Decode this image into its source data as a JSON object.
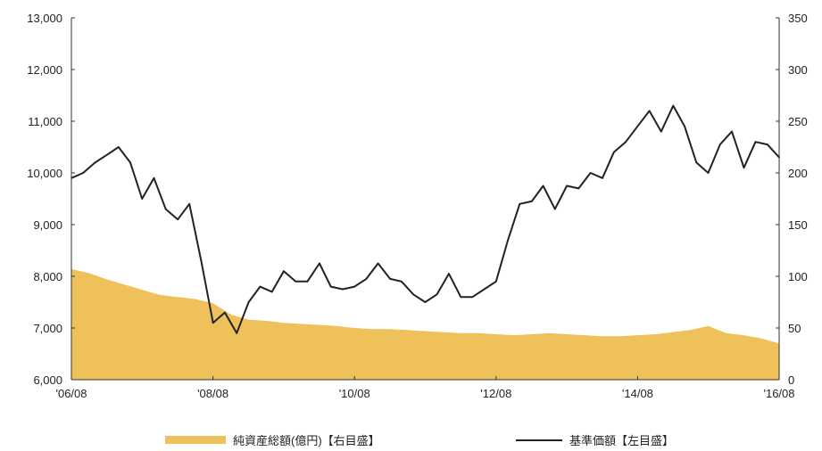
{
  "chart_data": {
    "type": "line",
    "x_ticks": [
      "'06/08",
      "'08/08",
      "'10/08",
      "'12/08",
      "'14/08",
      "'16/08"
    ],
    "left_axis": {
      "ticks": [
        "6,000",
        "7,000",
        "8,000",
        "9,000",
        "10,000",
        "11,000",
        "12,000",
        "13,000"
      ],
      "ylim": [
        6000,
        13000
      ]
    },
    "right_axis": {
      "ticks": [
        "0",
        "50",
        "100",
        "150",
        "200",
        "250",
        "300",
        "350"
      ],
      "ylim": [
        0,
        350
      ]
    },
    "grid": false,
    "legend_position": "bottom",
    "series": [
      {
        "name": "純資産総額(億円)【右目盛】",
        "type": "area",
        "axis": "right",
        "color": "#eec15a",
        "x": [
          "2006-08",
          "2006-11",
          "2007-02",
          "2007-05",
          "2007-08",
          "2007-11",
          "2008-02",
          "2008-05",
          "2008-08",
          "2008-11",
          "2009-02",
          "2009-05",
          "2009-08",
          "2009-11",
          "2010-02",
          "2010-05",
          "2010-08",
          "2010-11",
          "2011-02",
          "2011-05",
          "2011-08",
          "2011-11",
          "2012-02",
          "2012-05",
          "2012-08",
          "2012-11",
          "2013-02",
          "2013-05",
          "2013-08",
          "2013-11",
          "2014-02",
          "2014-05",
          "2014-08",
          "2014-11",
          "2015-02",
          "2015-05",
          "2015-08",
          "2015-11",
          "2016-02",
          "2016-05",
          "2016-08"
        ],
        "values": [
          107,
          103,
          97,
          92,
          87,
          82,
          80,
          78,
          74,
          63,
          58,
          57,
          55,
          54,
          53,
          52,
          50,
          49,
          49,
          48,
          47,
          46,
          45,
          45,
          44,
          43,
          44,
          45,
          44,
          43,
          42,
          42,
          43,
          44,
          46,
          48,
          52,
          45,
          43,
          40,
          35
        ]
      },
      {
        "name": "基準価額【左目盛】",
        "type": "line",
        "axis": "left",
        "color": "#222222",
        "x": [
          "2006-08",
          "2006-10",
          "2006-12",
          "2007-02",
          "2007-04",
          "2007-06",
          "2007-08",
          "2007-10",
          "2007-12",
          "2008-02",
          "2008-04",
          "2008-06",
          "2008-08",
          "2008-10",
          "2008-12",
          "2009-02",
          "2009-04",
          "2009-06",
          "2009-08",
          "2009-10",
          "2009-12",
          "2010-02",
          "2010-04",
          "2010-06",
          "2010-08",
          "2010-10",
          "2010-12",
          "2011-02",
          "2011-04",
          "2011-06",
          "2011-08",
          "2011-10",
          "2011-12",
          "2012-02",
          "2012-04",
          "2012-06",
          "2012-08",
          "2012-10",
          "2012-12",
          "2013-02",
          "2013-04",
          "2013-06",
          "2013-08",
          "2013-10",
          "2013-12",
          "2014-02",
          "2014-04",
          "2014-06",
          "2014-08",
          "2014-10",
          "2014-12",
          "2015-02",
          "2015-04",
          "2015-06",
          "2015-08",
          "2015-10",
          "2015-12",
          "2016-02",
          "2016-04",
          "2016-06",
          "2016-08"
        ],
        "values": [
          9900,
          10000,
          10200,
          10350,
          10500,
          10200,
          9500,
          9900,
          9300,
          9100,
          9400,
          8300,
          7100,
          7300,
          6900,
          7500,
          7800,
          7700,
          8100,
          7900,
          7900,
          8250,
          7800,
          7750,
          7800,
          7950,
          8250,
          7950,
          7900,
          7650,
          7500,
          7650,
          8050,
          7600,
          7600,
          7750,
          7900,
          8700,
          9400,
          9450,
          9750,
          9300,
          9750,
          9700,
          10000,
          9900,
          10400,
          10600,
          10900,
          11200,
          10800,
          11300,
          10900,
          10200,
          10000,
          10550,
          10800,
          10100,
          10600,
          10550,
          10300
        ]
      }
    ]
  }
}
